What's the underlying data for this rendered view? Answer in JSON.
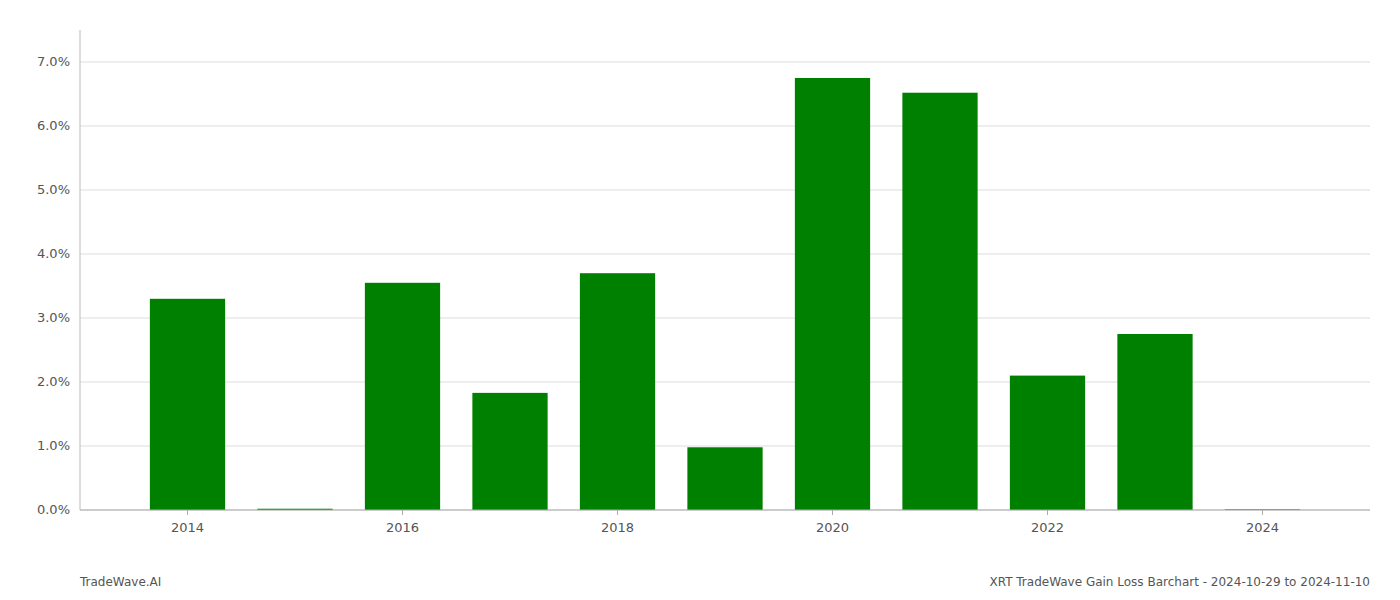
{
  "chart_data": {
    "type": "bar",
    "title": "XRT TradeWave Gain Loss Barchart - 2024-10-29 to 2024-11-10",
    "annotations": [
      "TradeWave.AI"
    ],
    "x": [
      2014,
      2015,
      2016,
      2017,
      2018,
      2019,
      2020,
      2021,
      2022,
      2023,
      2024
    ],
    "values": [
      0.033,
      0.0002,
      0.0355,
      0.0183,
      0.037,
      0.0098,
      0.0675,
      0.0652,
      0.021,
      0.0275,
      0.0001
    ],
    "color": "#008000",
    "xlim": [
      2013.0,
      2025.0
    ],
    "xticks": [
      2014,
      2016,
      2018,
      2020,
      2022,
      2024
    ],
    "ylim": [
      0,
      0.075
    ],
    "yticks": [
      {
        "value": 0.0,
        "label": "0.0%"
      },
      {
        "value": 0.01,
        "label": "1.0%"
      },
      {
        "value": 0.02,
        "label": "2.0%"
      },
      {
        "value": 0.03,
        "label": "3.0%"
      },
      {
        "value": 0.04,
        "label": "4.0%"
      },
      {
        "value": 0.05,
        "label": "5.0%"
      },
      {
        "value": 0.06,
        "label": "6.0%"
      },
      {
        "value": 0.07,
        "label": "7.0%"
      }
    ],
    "grid": true
  }
}
